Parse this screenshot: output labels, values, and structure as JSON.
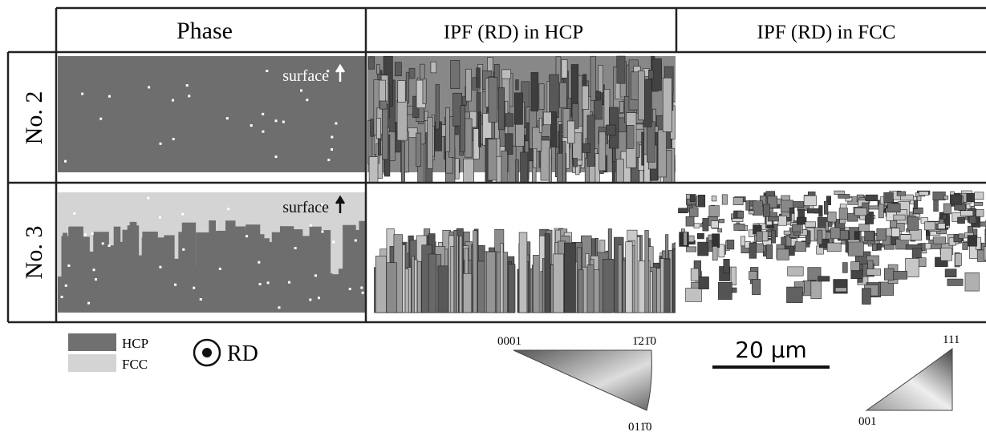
{
  "header": {
    "columns": [
      "Phase",
      "IPF (RD) in HCP",
      "IPF (RD) in FCC"
    ]
  },
  "rows": [
    {
      "label": "No. 2",
      "annotation": "surface"
    },
    {
      "label": "No. 3",
      "annotation": "surface"
    }
  ],
  "legend": {
    "items": [
      "HCP",
      "FCC"
    ],
    "direction": "RD"
  },
  "hcp_triangle": {
    "labels": [
      "0001",
      "1̄21̄0",
      "011̄0"
    ]
  },
  "fcc_triangle": {
    "labels": [
      "111",
      "001"
    ]
  },
  "scale_bar": "20 µm"
}
